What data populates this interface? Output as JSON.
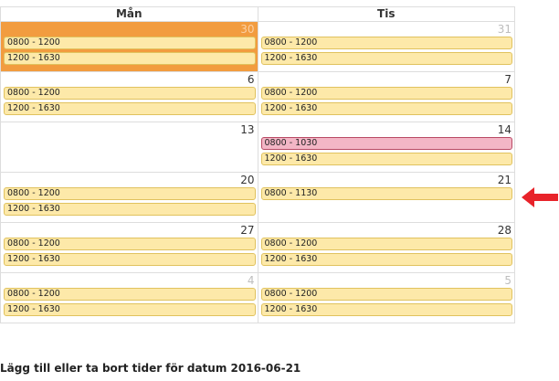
{
  "calendar": {
    "headers": [
      "Mån",
      "Tis"
    ],
    "rows": [
      [
        {
          "day": "30",
          "other": true,
          "today": true,
          "slots": [
            "0800 - 1200",
            "1200 - 1630"
          ]
        },
        {
          "day": "31",
          "other": true,
          "today": false,
          "slots": [
            "0800 - 1200",
            "1200 - 1630"
          ]
        }
      ],
      [
        {
          "day": "6",
          "other": false,
          "today": false,
          "slots": [
            "0800 - 1200",
            "1200 - 1630"
          ]
        },
        {
          "day": "7",
          "other": false,
          "today": false,
          "slots": [
            "0800 - 1200",
            "1200 - 1630"
          ]
        }
      ],
      [
        {
          "day": "13",
          "other": false,
          "today": false,
          "slots": []
        },
        {
          "day": "14",
          "other": false,
          "today": false,
          "slots": [
            "0800 - 1030",
            "1200 - 1630"
          ],
          "selected_slot": 0
        }
      ],
      [
        {
          "day": "20",
          "other": false,
          "today": false,
          "slots": [
            "0800 - 1200",
            "1200 - 1630"
          ]
        },
        {
          "day": "21",
          "other": false,
          "today": false,
          "slots": [
            "0800 - 1130"
          ]
        }
      ],
      [
        {
          "day": "27",
          "other": false,
          "today": false,
          "slots": [
            "0800 - 1200",
            "1200 - 1630"
          ]
        },
        {
          "day": "28",
          "other": false,
          "today": false,
          "slots": [
            "0800 - 1200",
            "1200 - 1630"
          ]
        }
      ],
      [
        {
          "day": "4",
          "other": true,
          "today": false,
          "slots": [
            "0800 - 1200",
            "1200 - 1630"
          ]
        },
        {
          "day": "5",
          "other": true,
          "today": false,
          "slots": [
            "0800 - 1200",
            "1200 - 1630"
          ]
        }
      ]
    ]
  },
  "annotation": {
    "icon": "arrow-left-icon",
    "color": "#e8232a"
  },
  "footer": {
    "text": "Lägg till eller ta bort tider för datum 2016-06-21"
  },
  "colors": {
    "today": "#f29c3f",
    "slot": "#fde9a9",
    "selected_slot": "#f3b6c6"
  }
}
